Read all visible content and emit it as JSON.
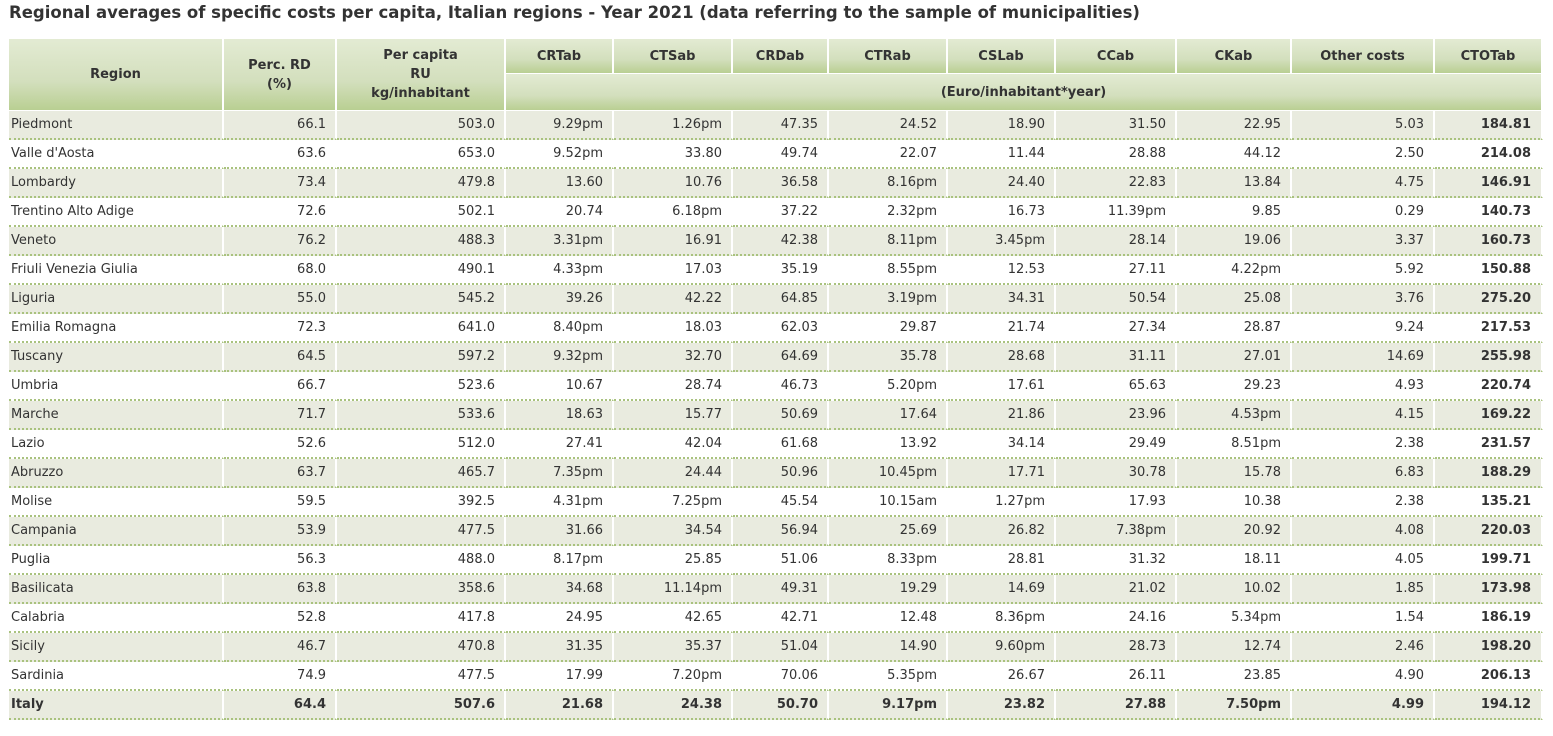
{
  "title": "Regional averages of specific costs per capita, Italian regions - Year 2021 (data referring to the sample of municipalities)",
  "header": {
    "region": "Region",
    "perc_rd_line1": "Perc. RD",
    "perc_rd_line2": "(%)",
    "per_capita_line1": "Per capita",
    "per_capita_line2": "RU",
    "per_capita_line3": "kg/inhabitant",
    "crtab": "CRTab",
    "ctsab": "CTSab",
    "crdab": "CRDab",
    "ctrab": "CTRab",
    "cslab": "CSLab",
    "ccab": "CCab",
    "ckab": "CKab",
    "other": "Other costs",
    "ctotab": "CTOTab",
    "unit": "(Euro/inhabitant*year)"
  },
  "rows": [
    [
      "Piedmont",
      "66.1",
      "503.0",
      "9.29pm",
      "1.26pm",
      "47.35",
      "24.52",
      "18.90",
      "31.50",
      "22.95",
      "5.03",
      "184.81"
    ],
    [
      "Valle d'Aosta",
      "63.6",
      "653.0",
      "9.52pm",
      "33.80",
      "49.74",
      "22.07",
      "11.44",
      "28.88",
      "44.12",
      "2.50",
      "214.08"
    ],
    [
      "Lombardy",
      "73.4",
      "479.8",
      "13.60",
      "10.76",
      "36.58",
      "8.16pm",
      "24.40",
      "22.83",
      "13.84",
      "4.75",
      "146.91"
    ],
    [
      "Trentino Alto Adige",
      "72.6",
      "502.1",
      "20.74",
      "6.18pm",
      "37.22",
      "2.32pm",
      "16.73",
      "11.39pm",
      "9.85",
      "0.29",
      "140.73"
    ],
    [
      "Veneto",
      "76.2",
      "488.3",
      "3.31pm",
      "16.91",
      "42.38",
      "8.11pm",
      "3.45pm",
      "28.14",
      "19.06",
      "3.37",
      "160.73"
    ],
    [
      "Friuli Venezia Giulia",
      "68.0",
      "490.1",
      "4.33pm",
      "17.03",
      "35.19",
      "8.55pm",
      "12.53",
      "27.11",
      "4.22pm",
      "5.92",
      "150.88"
    ],
    [
      "Liguria",
      "55.0",
      "545.2",
      "39.26",
      "42.22",
      "64.85",
      "3.19pm",
      "34.31",
      "50.54",
      "25.08",
      "3.76",
      "275.20"
    ],
    [
      "Emilia Romagna",
      "72.3",
      "641.0",
      "8.40pm",
      "18.03",
      "62.03",
      "29.87",
      "21.74",
      "27.34",
      "28.87",
      "9.24",
      "217.53"
    ],
    [
      "Tuscany",
      "64.5",
      "597.2",
      "9.32pm",
      "32.70",
      "64.69",
      "35.78",
      "28.68",
      "31.11",
      "27.01",
      "14.69",
      "255.98"
    ],
    [
      "Umbria",
      "66.7",
      "523.6",
      "10.67",
      "28.74",
      "46.73",
      "5.20pm",
      "17.61",
      "65.63",
      "29.23",
      "4.93",
      "220.74"
    ],
    [
      "Marche",
      "71.7",
      "533.6",
      "18.63",
      "15.77",
      "50.69",
      "17.64",
      "21.86",
      "23.96",
      "4.53pm",
      "4.15",
      "169.22"
    ],
    [
      "Lazio",
      "52.6",
      "512.0",
      "27.41",
      "42.04",
      "61.68",
      "13.92",
      "34.14",
      "29.49",
      "8.51pm",
      "2.38",
      "231.57"
    ],
    [
      "Abruzzo",
      "63.7",
      "465.7",
      "7.35pm",
      "24.44",
      "50.96",
      "10.45pm",
      "17.71",
      "30.78",
      "15.78",
      "6.83",
      "188.29"
    ],
    [
      "Molise",
      "59.5",
      "392.5",
      "4.31pm",
      "7.25pm",
      "45.54",
      "10.15am",
      "1.27pm",
      "17.93",
      "10.38",
      "2.38",
      "135.21"
    ],
    [
      "Campania",
      "53.9",
      "477.5",
      "31.66",
      "34.54",
      "56.94",
      "25.69",
      "26.82",
      "7.38pm",
      "20.92",
      "4.08",
      "220.03"
    ],
    [
      "Puglia",
      "56.3",
      "488.0",
      "8.17pm",
      "25.85",
      "51.06",
      "8.33pm",
      "28.81",
      "31.32",
      "18.11",
      "4.05",
      "199.71"
    ],
    [
      "Basilicata",
      "63.8",
      "358.6",
      "34.68",
      "11.14pm",
      "49.31",
      "19.29",
      "14.69",
      "21.02",
      "10.02",
      "1.85",
      "173.98"
    ],
    [
      "Calabria",
      "52.8",
      "417.8",
      "24.95",
      "42.65",
      "42.71",
      "12.48",
      "8.36pm",
      "24.16",
      "5.34pm",
      "1.54",
      "186.19"
    ],
    [
      "Sicily",
      "46.7",
      "470.8",
      "31.35",
      "35.37",
      "51.04",
      "14.90",
      "9.60pm",
      "28.73",
      "12.74",
      "2.46",
      "198.20"
    ],
    [
      "Sardinia",
      "74.9",
      "477.5",
      "17.99",
      "7.20pm",
      "70.06",
      "5.35pm",
      "26.67",
      "26.11",
      "23.85",
      "4.90",
      "206.13"
    ]
  ],
  "total_row": [
    "Italy",
    "64.4",
    "507.6",
    "21.68",
    "24.38",
    "50.70",
    "9.17pm",
    "23.82",
    "27.88",
    "7.50pm",
    "4.99",
    "194.12"
  ]
}
